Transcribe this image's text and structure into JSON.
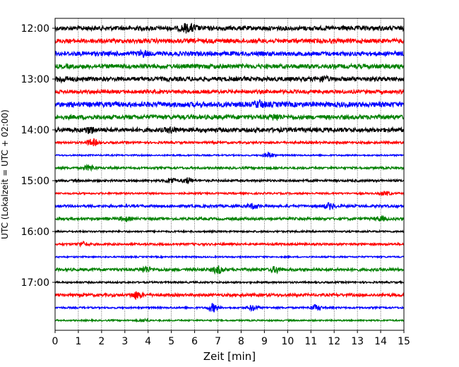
{
  "chart_data": {
    "type": "line",
    "xlabel": "Zeit  [min]",
    "ylabel": "UTC (Lokalzeit = UTC + 02:00)",
    "xlim": [
      0,
      15
    ],
    "xticks": [
      0,
      1,
      2,
      3,
      4,
      5,
      6,
      7,
      8,
      9,
      10,
      11,
      12,
      13,
      14,
      15
    ],
    "yticks": [
      "12:00",
      "13:00",
      "14:00",
      "15:00",
      "16:00",
      "17:00"
    ],
    "grid": "vertical dotted",
    "trace_interval_min": 15,
    "series": [
      {
        "start": "12:00",
        "color": "#000000",
        "amp": 3,
        "bursts": [
          [
            5.6,
            5
          ],
          [
            5.9,
            4
          ]
        ]
      },
      {
        "start": "12:15",
        "color": "#ff0000",
        "amp": 3,
        "bursts": []
      },
      {
        "start": "12:30",
        "color": "#0000ff",
        "amp": 3,
        "bursts": [
          [
            3.8,
            3
          ]
        ]
      },
      {
        "start": "12:45",
        "color": "#008000",
        "amp": 3,
        "bursts": []
      },
      {
        "start": "13:00",
        "color": "#000000",
        "amp": 3,
        "bursts": [
          [
            0.3,
            3
          ],
          [
            11.5,
            3
          ]
        ]
      },
      {
        "start": "13:15",
        "color": "#ff0000",
        "amp": 2.5,
        "bursts": []
      },
      {
        "start": "13:30",
        "color": "#0000ff",
        "amp": 3.5,
        "bursts": [
          [
            8.8,
            4
          ]
        ]
      },
      {
        "start": "13:45",
        "color": "#008000",
        "amp": 3,
        "bursts": [
          [
            9.5,
            3
          ]
        ]
      },
      {
        "start": "14:00",
        "color": "#000000",
        "amp": 3,
        "bursts": [
          [
            1.5,
            4
          ],
          [
            5.0,
            3
          ]
        ]
      },
      {
        "start": "14:15",
        "color": "#ff0000",
        "amp": 1.5,
        "bursts": [
          [
            1.6,
            5
          ]
        ]
      },
      {
        "start": "14:30",
        "color": "#0000ff",
        "amp": 1,
        "bursts": [
          [
            9.2,
            4
          ]
        ]
      },
      {
        "start": "14:45",
        "color": "#008000",
        "amp": 1.5,
        "bursts": [
          [
            1.5,
            4
          ]
        ]
      },
      {
        "start": "15:00",
        "color": "#000000",
        "amp": 1.5,
        "bursts": [
          [
            5.0,
            4
          ],
          [
            5.7,
            4
          ]
        ]
      },
      {
        "start": "15:15",
        "color": "#ff0000",
        "amp": 1.2,
        "bursts": [
          [
            14.2,
            3
          ]
        ]
      },
      {
        "start": "15:30",
        "color": "#0000ff",
        "amp": 1.8,
        "bursts": [
          [
            8.5,
            3
          ],
          [
            11.8,
            4
          ]
        ]
      },
      {
        "start": "15:45",
        "color": "#008000",
        "amp": 1.8,
        "bursts": [
          [
            3.0,
            3
          ],
          [
            14.0,
            3
          ]
        ]
      },
      {
        "start": "16:00",
        "color": "#000000",
        "amp": 1.2,
        "bursts": []
      },
      {
        "start": "16:15",
        "color": "#ff0000",
        "amp": 1.5,
        "bursts": [
          [
            1.2,
            3
          ]
        ]
      },
      {
        "start": "16:30",
        "color": "#0000ff",
        "amp": 1,
        "bursts": []
      },
      {
        "start": "16:45",
        "color": "#008000",
        "amp": 2,
        "bursts": [
          [
            3.9,
            4
          ],
          [
            7.0,
            5
          ],
          [
            9.5,
            4
          ]
        ]
      },
      {
        "start": "17:00",
        "color": "#000000",
        "amp": 1.2,
        "bursts": []
      },
      {
        "start": "17:15",
        "color": "#ff0000",
        "amp": 2,
        "bursts": [
          [
            3.5,
            5
          ]
        ]
      },
      {
        "start": "17:30",
        "color": "#0000ff",
        "amp": 1.2,
        "bursts": [
          [
            6.8,
            6
          ],
          [
            8.5,
            4
          ],
          [
            11.2,
            4
          ]
        ]
      },
      {
        "start": "17:45",
        "color": "#008000",
        "amp": 1,
        "bursts": [
          [
            3.8,
            2
          ]
        ]
      }
    ]
  }
}
